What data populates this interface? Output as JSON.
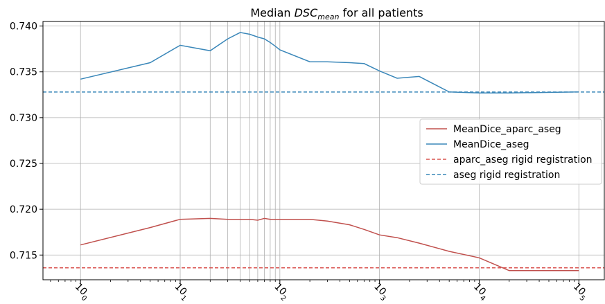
{
  "chart_data": {
    "type": "line",
    "title_prefix": "Median ",
    "title_symbol": "DSC",
    "title_subscript": "mean",
    "title_suffix": " for all patients",
    "x_scale": "log",
    "xlim": [
      0.42,
      180000
    ],
    "ylim": [
      0.7123,
      0.7405
    ],
    "grid": true,
    "legend_position": "center-right",
    "x_tick_values": [
      1,
      10,
      100,
      1000,
      10000,
      100000
    ],
    "x_tick_labels": [
      {
        "base": "10",
        "exp": "0"
      },
      {
        "base": "10",
        "exp": "1"
      },
      {
        "base": "10",
        "exp": "2"
      },
      {
        "base": "10",
        "exp": "3"
      },
      {
        "base": "10",
        "exp": "4"
      },
      {
        "base": "10",
        "exp": "5"
      }
    ],
    "y_tick_values": [
      0.715,
      0.72,
      0.725,
      0.73,
      0.735,
      0.74
    ],
    "y_tick_labels": [
      "0.715",
      "0.720",
      "0.725",
      "0.730",
      "0.735",
      "0.740"
    ],
    "series": [
      {
        "name": "MeanDice_aparc_aseg",
        "color": "#c0504d",
        "style": "solid",
        "x": [
          1,
          5,
          10,
          20,
          30,
          40,
          50,
          60,
          70,
          80,
          90,
          100,
          200,
          300,
          500,
          700,
          1000,
          1500,
          2500,
          5000,
          10000,
          20000,
          100000
        ],
        "y": [
          0.7161,
          0.718,
          0.7189,
          0.719,
          0.7189,
          0.7189,
          0.7189,
          0.7188,
          0.719,
          0.7189,
          0.7189,
          0.7189,
          0.7189,
          0.7187,
          0.7183,
          0.7178,
          0.7172,
          0.7169,
          0.7163,
          0.7154,
          0.7147,
          0.7133,
          0.7133
        ]
      },
      {
        "name": "MeanDice_aseg",
        "color": "#3a87b9",
        "style": "solid",
        "x": [
          1,
          5,
          10,
          20,
          30,
          40,
          50,
          60,
          70,
          80,
          90,
          100,
          200,
          300,
          500,
          700,
          1000,
          1500,
          2500,
          5000,
          10000,
          20000,
          100000
        ],
        "y": [
          0.7342,
          0.736,
          0.7379,
          0.7373,
          0.7386,
          0.7393,
          0.7391,
          0.7388,
          0.7386,
          0.7382,
          0.7378,
          0.7374,
          0.7361,
          0.7361,
          0.736,
          0.7359,
          0.7351,
          0.7343,
          0.7345,
          0.7328,
          0.7327,
          0.7327,
          0.7328
        ]
      },
      {
        "name": "aparc_aseg rigid registration",
        "color": "#d9534f",
        "style": "dashed",
        "constant": 0.7136
      },
      {
        "name": "aseg rigid registration",
        "color": "#3a87b9",
        "style": "dashed",
        "constant": 0.7328
      }
    ]
  }
}
